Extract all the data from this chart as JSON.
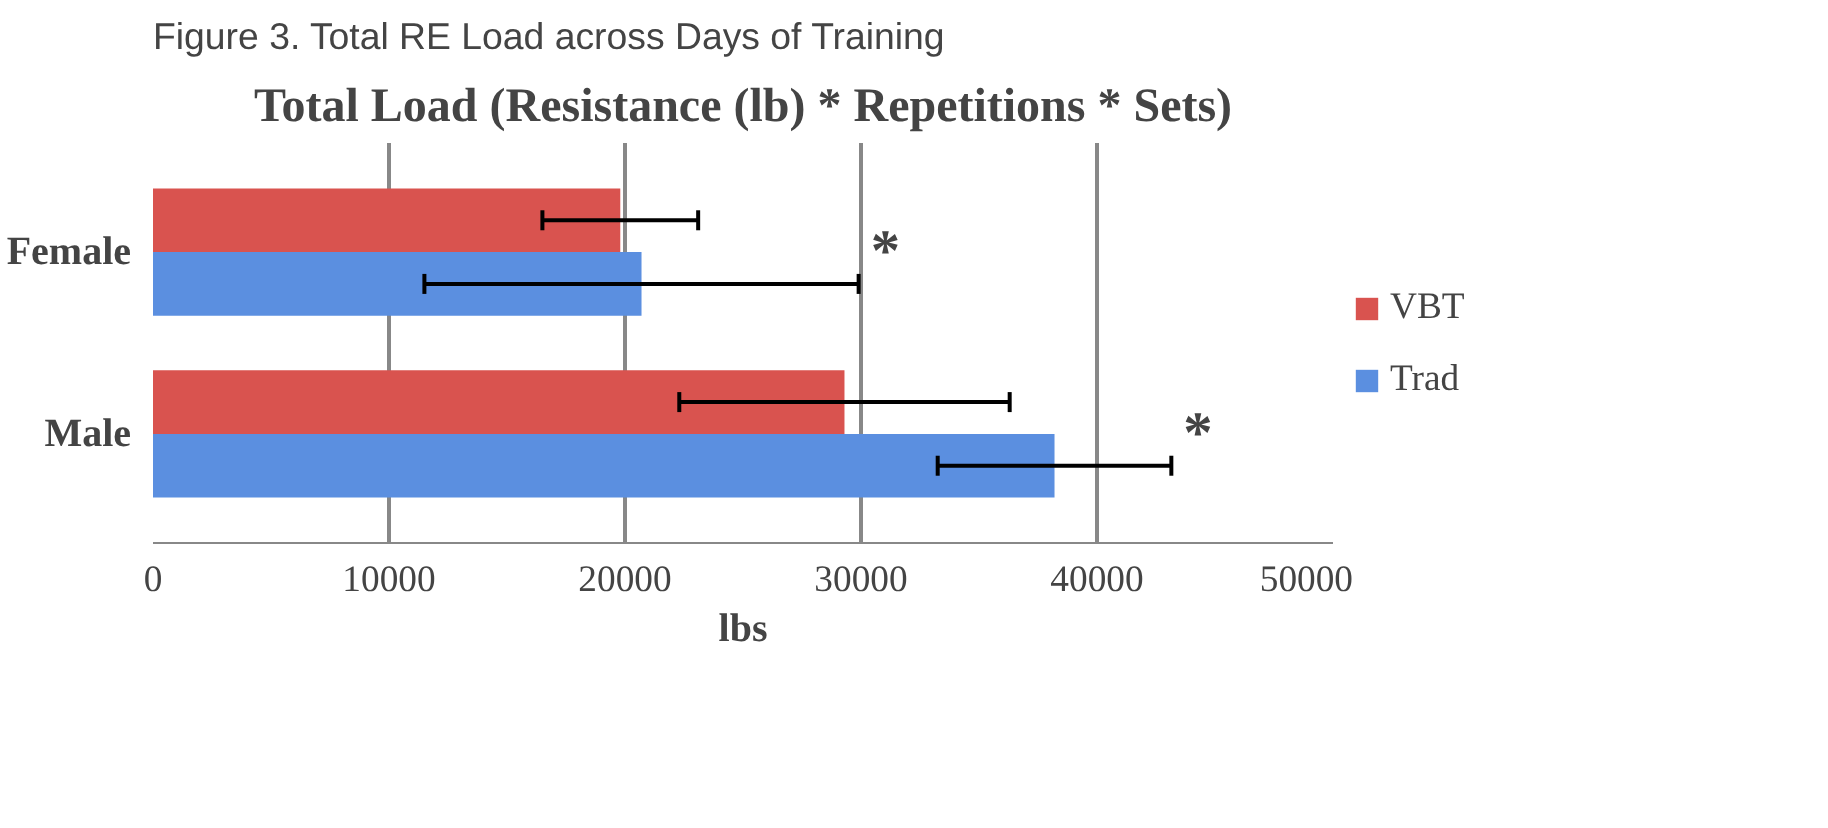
{
  "chart_data": {
    "type": "bar",
    "orientation": "horizontal",
    "title": "Total Load (Resistance (lb) * Repetitions * Sets)",
    "xlabel": "lbs",
    "categories": [
      "Female",
      "Male"
    ],
    "series": [
      {
        "name": "VBT",
        "color": "#d9534f",
        "values": [
          19800,
          29300
        ],
        "errors": [
          3300,
          7000
        ]
      },
      {
        "name": "Trad",
        "color": "#5b8fe0",
        "values": [
          20700,
          38200
        ],
        "errors": [
          9200,
          4950
        ]
      }
    ],
    "xlim": [
      0,
      50000
    ],
    "xticks": [
      0,
      10000,
      20000,
      30000,
      40000,
      50000
    ],
    "grid": "x",
    "legend": "right",
    "annotations": [
      "Figure 3. Total RE Load across Days of Training",
      "*",
      "*"
    ]
  }
}
